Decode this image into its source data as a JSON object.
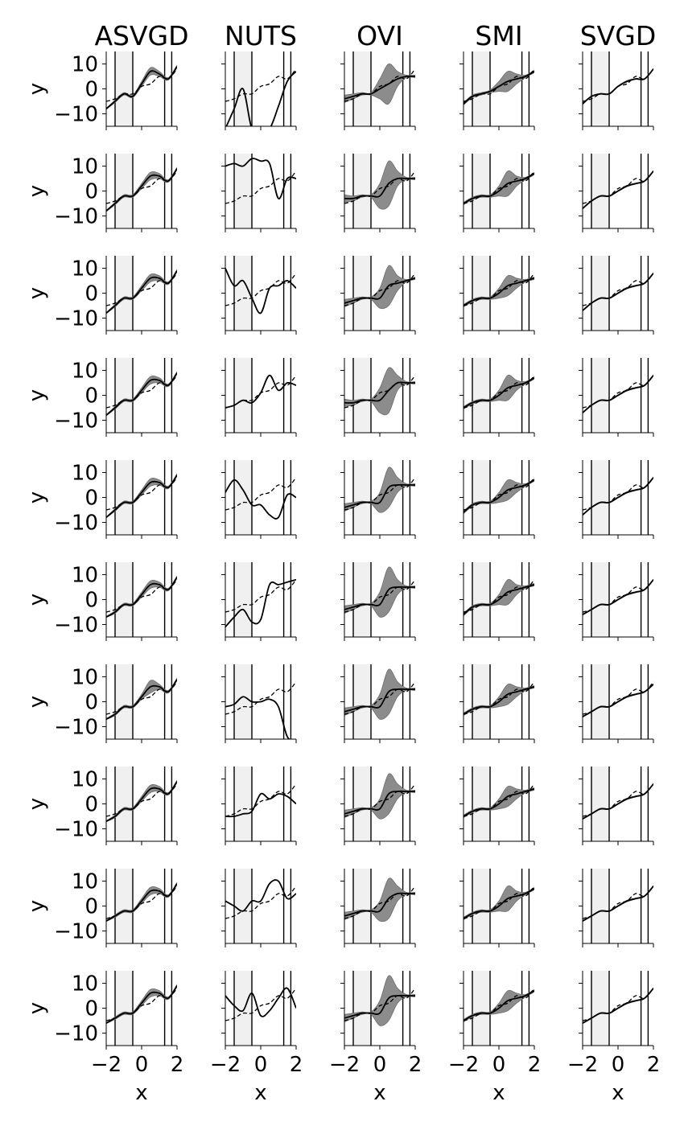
{
  "columns": [
    "ASVGD",
    "NUTS",
    "OVI",
    "SMI",
    "SVGD"
  ],
  "xlabel": "x",
  "ylabel": "y",
  "chart_data": {
    "type": "line",
    "layout": "grid of 10 rows x 5 columns of small line plots",
    "xlim": [
      -2,
      2
    ],
    "ylim": [
      -15,
      15
    ],
    "x_ticks": [
      -2,
      0,
      2
    ],
    "x_tick_labels": [
      "−2",
      "0",
      "2"
    ],
    "y_ticks": [
      -10,
      0,
      10
    ],
    "y_tick_labels": [
      "−10",
      "0",
      "10"
    ],
    "x_tick_labels_shown_on": "bottom row only",
    "y_tick_labels_shown_on": "first column only",
    "shaded_x_region": [
      -1.5,
      -0.5
    ],
    "vertical_lines_x": [
      -1.5,
      -0.5,
      1.3,
      1.7
    ],
    "styles": {
      "true_function": "dashed black",
      "posterior_mean": "solid black",
      "credible_band": "gray fill"
    },
    "x_grid": [
      -2.0,
      -1.5,
      -1.0,
      -0.5,
      0.0,
      0.5,
      1.0,
      1.5,
      2.0
    ],
    "true_function": [
      -5,
      -4,
      -2,
      -2,
      1,
      2,
      5,
      4,
      8
    ],
    "panels": [
      [
        {
          "mean": [
            -8,
            -5,
            -2,
            -3,
            2,
            7,
            6,
            4,
            9
          ],
          "band": [
            0.2,
            0.5,
            0.5,
            0.5,
            1,
            1.5,
            1,
            0.5,
            0.5
          ]
        },
        {
          "mean": [
            -16,
            -8,
            0,
            -16,
            -16,
            -16,
            -7,
            3,
            7
          ],
          "band": [
            0,
            0,
            0,
            0,
            0,
            0,
            0,
            0,
            0
          ]
        },
        {
          "mean": [
            -4,
            -3,
            -2,
            -2,
            0,
            2,
            4,
            5,
            5
          ],
          "band": [
            1.5,
            1,
            0.5,
            0.5,
            4,
            8,
            3,
            0.5,
            0.5
          ]
        },
        {
          "mean": [
            -6,
            -3,
            -2,
            -1,
            1,
            3,
            4,
            5,
            7
          ],
          "band": [
            0.5,
            0.5,
            0.5,
            0.5,
            2,
            4,
            2,
            0.5,
            0.5
          ]
        },
        {
          "mean": [
            -6,
            -3,
            -2,
            -2,
            1,
            3,
            4,
            4,
            8
          ],
          "band": [
            0.2,
            0.2,
            0.2,
            0.2,
            0.2,
            0.3,
            0.2,
            0.2,
            0.2
          ]
        }
      ],
      [
        {
          "mean": [
            -8,
            -5,
            -2,
            -2,
            2,
            6,
            6,
            4,
            9
          ],
          "band": [
            0.2,
            0.5,
            0.5,
            0.5,
            1,
            1.5,
            1,
            0.5,
            0.5
          ]
        },
        {
          "mean": [
            10,
            11,
            10,
            13,
            12,
            11,
            -3,
            5,
            5
          ],
          "band": [
            0,
            0,
            0,
            0,
            0,
            0,
            0,
            0,
            0
          ]
        },
        {
          "mean": [
            -3,
            -3,
            -2,
            -2,
            -2,
            3,
            5,
            5,
            5
          ],
          "band": [
            1.5,
            1,
            0.5,
            0.5,
            5,
            9,
            3,
            0.5,
            0.5
          ]
        },
        {
          "mean": [
            -5,
            -3,
            -2,
            -2,
            0,
            3,
            4,
            5,
            7
          ],
          "band": [
            0.5,
            0.5,
            0.5,
            0.5,
            2,
            5,
            2,
            0.5,
            0.5
          ]
        },
        {
          "mean": [
            -7,
            -4,
            -2,
            -2,
            0,
            2,
            3,
            4,
            8
          ],
          "band": [
            0.2,
            0.2,
            0.2,
            0.2,
            0.2,
            0.3,
            0.2,
            0.2,
            0.2
          ]
        }
      ],
      [
        {
          "mean": [
            -8,
            -5,
            -2,
            -2,
            2,
            6,
            6,
            4,
            9
          ],
          "band": [
            0.2,
            0.5,
            0.5,
            0.5,
            1,
            1.5,
            1,
            0.5,
            0.5
          ]
        },
        {
          "mean": [
            10,
            3,
            5,
            -2,
            -8,
            2,
            3,
            5,
            2
          ],
          "band": [
            0,
            0,
            0,
            0,
            0,
            0,
            0,
            0,
            0
          ]
        },
        {
          "mean": [
            -4,
            -3,
            -2,
            -2,
            -2,
            3,
            4,
            5,
            6
          ],
          "band": [
            1.5,
            1,
            0.5,
            0.5,
            4,
            8,
            3,
            0.5,
            0.5
          ]
        },
        {
          "mean": [
            -5,
            -3,
            -2,
            -2,
            0,
            3,
            4,
            5,
            6
          ],
          "band": [
            0.5,
            0.5,
            0.5,
            0.5,
            2,
            4,
            2,
            0.5,
            0.5
          ]
        },
        {
          "mean": [
            -7,
            -4,
            -2,
            -2,
            0,
            2,
            3,
            4,
            8
          ],
          "band": [
            0.2,
            0.2,
            0.2,
            0.2,
            0.2,
            0.3,
            0.2,
            0.2,
            0.2
          ]
        }
      ],
      [
        {
          "mean": [
            -8,
            -5,
            -2,
            -2,
            2,
            6,
            6,
            4,
            9
          ],
          "band": [
            0.2,
            0.5,
            0.5,
            0.5,
            1,
            1.5,
            1,
            0.5,
            0.5
          ]
        },
        {
          "mean": [
            -5,
            -4,
            -2,
            -3,
            1,
            8,
            2,
            5,
            4
          ],
          "band": [
            0,
            0,
            0,
            0,
            0,
            0,
            0,
            0,
            0
          ]
        },
        {
          "mean": [
            -3,
            -3,
            -2,
            -2,
            -2,
            2,
            5,
            5,
            5
          ],
          "band": [
            1.5,
            1,
            0.5,
            0.5,
            5,
            9,
            3,
            0.5,
            0.5
          ]
        },
        {
          "mean": [
            -5,
            -3,
            -2,
            -2,
            0,
            3,
            4,
            5,
            7
          ],
          "band": [
            0.5,
            0.5,
            0.5,
            0.5,
            2,
            5,
            2,
            0.5,
            0.5
          ]
        },
        {
          "mean": [
            -7,
            -4,
            -2,
            -2,
            0,
            2,
            3,
            4,
            8
          ],
          "band": [
            0.2,
            0.2,
            0.2,
            0.2,
            0.2,
            0.3,
            0.2,
            0.2,
            0.2
          ]
        }
      ],
      [
        {
          "mean": [
            -8,
            -5,
            -2,
            -2,
            2,
            6,
            6,
            4,
            9
          ],
          "band": [
            0.2,
            0.5,
            0.5,
            0.5,
            1,
            1.5,
            1,
            0.5,
            0.5
          ]
        },
        {
          "mean": [
            2,
            7,
            3,
            -3,
            -3,
            -7,
            -8,
            1,
            0
          ],
          "band": [
            0,
            0,
            0,
            0,
            0,
            0,
            0,
            0,
            0
          ]
        },
        {
          "mean": [
            -4,
            -3,
            -2,
            -2,
            -2,
            4,
            5,
            5,
            5
          ],
          "band": [
            1.5,
            1,
            0.5,
            0.5,
            4,
            8,
            3,
            0.5,
            0.5
          ]
        },
        {
          "mean": [
            -6,
            -3,
            -2,
            -2,
            0,
            3,
            4,
            5,
            7
          ],
          "band": [
            0.5,
            0.5,
            0.5,
            0.5,
            2,
            4,
            2,
            0.5,
            0.5
          ]
        },
        {
          "mean": [
            -7,
            -4,
            -2,
            -2,
            0,
            2,
            3,
            4,
            8
          ],
          "band": [
            0.2,
            0.2,
            0.2,
            0.2,
            0.2,
            0.3,
            0.2,
            0.2,
            0.2
          ]
        }
      ],
      [
        {
          "mean": [
            -7,
            -5,
            -2,
            -2,
            2,
            6,
            6,
            4,
            9
          ],
          "band": [
            0.2,
            0.5,
            0.5,
            0.5,
            1,
            1.5,
            1,
            0.5,
            0.5
          ]
        },
        {
          "mean": [
            -11,
            -7,
            -4,
            -9,
            -8,
            6,
            6,
            7,
            8
          ],
          "band": [
            0,
            0,
            0,
            0,
            0,
            0,
            0,
            0,
            0
          ]
        },
        {
          "mean": [
            -4,
            -3,
            -2,
            -2,
            -2,
            4,
            5,
            5,
            5
          ],
          "band": [
            1.5,
            1,
            0.5,
            0.5,
            5,
            9,
            3,
            0.5,
            0.5
          ]
        },
        {
          "mean": [
            -6,
            -3,
            -2,
            -2,
            0,
            3,
            4,
            5,
            6
          ],
          "band": [
            0.5,
            0.5,
            0.5,
            0.5,
            2,
            5,
            2,
            0.5,
            0.5
          ]
        },
        {
          "mean": [
            -6,
            -4,
            -2,
            -2,
            0,
            2,
            3,
            4,
            8
          ],
          "band": [
            0.2,
            0.2,
            0.2,
            0.2,
            0.2,
            0.3,
            0.2,
            0.2,
            0.2
          ]
        }
      ],
      [
        {
          "mean": [
            -7,
            -5,
            -2,
            -2,
            2,
            6,
            6,
            4,
            9
          ],
          "band": [
            0.2,
            0.5,
            0.5,
            0.5,
            1,
            2.5,
            1,
            0.5,
            0.5
          ]
        },
        {
          "mean": [
            -2,
            -1,
            2,
            0,
            0,
            1,
            -2,
            -14,
            -16
          ],
          "band": [
            0,
            0,
            0,
            0,
            0,
            0,
            0,
            0,
            0
          ]
        },
        {
          "mean": [
            -4,
            -3,
            -2,
            -2,
            -2,
            4,
            5,
            5,
            5
          ],
          "band": [
            1.5,
            1,
            0.5,
            0.5,
            5,
            9,
            3,
            0.5,
            0.5
          ]
        },
        {
          "mean": [
            -5,
            -3,
            -2,
            -2,
            0,
            3,
            4,
            5,
            6
          ],
          "band": [
            0.5,
            0.5,
            0.5,
            0.5,
            2,
            4,
            2,
            0.5,
            0.5
          ]
        },
        {
          "mean": [
            -6,
            -4,
            -2,
            -2,
            0,
            2,
            3,
            4,
            7
          ],
          "band": [
            0.2,
            0.2,
            0.2,
            0.2,
            0.2,
            0.3,
            0.2,
            0.2,
            0.2
          ]
        }
      ],
      [
        {
          "mean": [
            -7,
            -5,
            -2,
            -2,
            2,
            6,
            6,
            4,
            9
          ],
          "band": [
            0.2,
            0.5,
            0.5,
            0.5,
            1,
            1.5,
            1,
            0.5,
            0.5
          ]
        },
        {
          "mean": [
            -5,
            -5,
            -4,
            -3,
            4,
            2,
            4,
            3,
            0
          ],
          "band": [
            0,
            0,
            0,
            0,
            0,
            0,
            0,
            0,
            0
          ]
        },
        {
          "mean": [
            -4,
            -3,
            -2,
            -2,
            -2,
            4,
            5,
            5,
            5
          ],
          "band": [
            1.5,
            1,
            0.5,
            0.5,
            4,
            8,
            3,
            0.5,
            0.5
          ]
        },
        {
          "mean": [
            -5,
            -3,
            -2,
            -2,
            0,
            3,
            4,
            5,
            6
          ],
          "band": [
            0.5,
            0.5,
            0.5,
            0.5,
            2,
            4,
            2,
            0.5,
            0.5
          ]
        },
        {
          "mean": [
            -6,
            -4,
            -2,
            -2,
            0,
            2,
            3,
            4,
            8
          ],
          "band": [
            0.2,
            0.2,
            0.2,
            0.2,
            0.2,
            0.3,
            0.2,
            0.2,
            0.2
          ]
        }
      ],
      [
        {
          "mean": [
            -6,
            -4,
            -2,
            -2,
            2,
            6,
            6,
            4,
            9
          ],
          "band": [
            0.2,
            0.5,
            0.5,
            0.5,
            1,
            1.5,
            1,
            0.5,
            0.5
          ]
        },
        {
          "mean": [
            2,
            0,
            -2,
            2,
            2,
            9,
            10,
            3,
            5
          ],
          "band": [
            0,
            0,
            0,
            0,
            0,
            0,
            0,
            0,
            0
          ]
        },
        {
          "mean": [
            -4,
            -3,
            -2,
            -2,
            -2,
            3,
            5,
            5,
            5
          ],
          "band": [
            1.5,
            1,
            0.5,
            0.5,
            4,
            8,
            3,
            0.5,
            0.5
          ]
        },
        {
          "mean": [
            -5,
            -3,
            -2,
            -2,
            0,
            3,
            4,
            5,
            7
          ],
          "band": [
            0.5,
            0.5,
            0.5,
            0.5,
            2,
            5,
            2,
            0.5,
            0.5
          ]
        },
        {
          "mean": [
            -6,
            -4,
            -2,
            -2,
            0,
            2,
            3,
            4,
            8
          ],
          "band": [
            0.2,
            0.2,
            0.2,
            0.2,
            0.2,
            0.3,
            0.2,
            0.2,
            0.2
          ]
        }
      ],
      [
        {
          "mean": [
            -6,
            -4,
            -2,
            -2,
            2,
            6,
            6,
            4,
            9
          ],
          "band": [
            0.2,
            0.5,
            0.5,
            0.5,
            1,
            1.5,
            1,
            0.5,
            0.5
          ]
        },
        {
          "mean": [
            5,
            1,
            -1,
            6,
            -3,
            -1,
            4,
            8,
            0
          ],
          "band": [
            0,
            0,
            0,
            0,
            0,
            0,
            0,
            0,
            0
          ]
        },
        {
          "mean": [
            -4,
            -3,
            -2,
            -2,
            -2,
            4,
            5,
            5,
            5
          ],
          "band": [
            1.5,
            1,
            0.5,
            0.5,
            5,
            9,
            3,
            0.5,
            0.5
          ]
        },
        {
          "mean": [
            -5,
            -3,
            -2,
            -2,
            0,
            3,
            4,
            5,
            7
          ],
          "band": [
            0.5,
            0.5,
            0.5,
            0.5,
            2,
            4,
            2,
            0.5,
            0.5
          ]
        },
        {
          "mean": [
            -6,
            -4,
            -2,
            -2,
            0,
            2,
            3,
            4,
            8
          ],
          "band": [
            0.2,
            0.2,
            0.2,
            0.2,
            0.2,
            0.3,
            0.2,
            0.2,
            0.2
          ]
        }
      ]
    ]
  }
}
